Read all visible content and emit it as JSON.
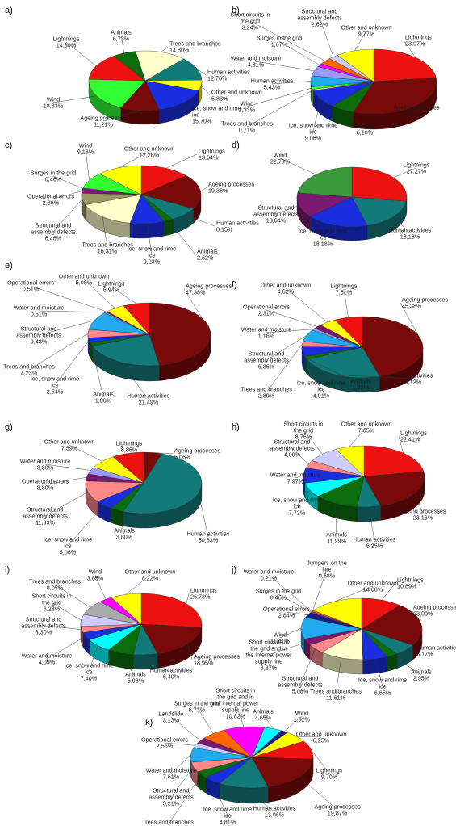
{
  "colors": {
    "red": "#ee1111",
    "maroon": "#7a0a0a",
    "teal": "#137a7a",
    "green": "#0b6d0b",
    "blue": "#1a2ee0",
    "yellow": "#ffff00",
    "lime": "#33ff33",
    "cream": "#ffffcc",
    "cyan": "#00ffff",
    "magenta": "#ff00ff",
    "orange": "#ff6600",
    "purple": "#7a1a6e",
    "salmon": "#ff8888",
    "periwinkle": "#9999ff",
    "lavender": "#ccccff",
    "sky": "#22aaee",
    "gray": "#aaaaaa",
    "olive": "#999966",
    "darkgreen": "#3a9a3a",
    "navy": "#1a2080",
    "lightgray": "#dddddd",
    "pink": "#ffccdd"
  },
  "chart_data": [
    {
      "id": "a",
      "panel_label": "a)",
      "type": "pie",
      "slices": [
        {
          "label": "Trees and branches",
          "value": 14.8,
          "color": "cream"
        },
        {
          "label": "Human activities",
          "value": 12.76,
          "color": "teal"
        },
        {
          "label": "Other and unknown",
          "value": 5.83,
          "color": "yellow"
        },
        {
          "label": "Ice, snow and rime ice",
          "value": 15.7,
          "color": "blue"
        },
        {
          "label": "Ageing processes",
          "value": 11.21,
          "color": "maroon"
        },
        {
          "label": "Wind",
          "value": 18.83,
          "color": "lime"
        },
        {
          "label": "Lightnings",
          "value": 14.8,
          "color": "red"
        },
        {
          "label": "Animals",
          "value": 6.73,
          "color": "green"
        }
      ],
      "value_labels": [
        "14,80%",
        "12,76%",
        "5,83%",
        "15,70%",
        "11,21%",
        "18,83%",
        "14,80%",
        "6,73%"
      ]
    },
    {
      "id": "b",
      "panel_label": "b)",
      "type": "pie",
      "slices": [
        {
          "label": "Lightnings",
          "value": 23.07,
          "color": "red"
        },
        {
          "label": "Ageing processes",
          "value": 32.17,
          "color": "maroon"
        },
        {
          "label": "Animals",
          "value": 6.1,
          "color": "green"
        },
        {
          "label": "Ice, snow and rime ice",
          "value": 9.06,
          "color": "blue"
        },
        {
          "label": "Trees and branches",
          "value": 0.71,
          "color": "cream"
        },
        {
          "label": "Wind",
          "value": 1.33,
          "color": "lime"
        },
        {
          "label": "Human activities",
          "value": 5.43,
          "color": "sky"
        },
        {
          "label": "Water and moisture",
          "value": 4.81,
          "color": "periwinkle"
        },
        {
          "label": "Surges in the grid",
          "value": 1.67,
          "color": "magenta"
        },
        {
          "label": "Short circuits in the grid",
          "value": 3.24,
          "color": "orange"
        },
        {
          "label": "Structural and assembly defects",
          "value": 2.62,
          "color": "lavender"
        },
        {
          "label": "Other and unknown",
          "value": 9.77,
          "color": "yellow"
        }
      ],
      "value_labels": [
        "23,07%",
        "32,17%",
        "6,10%",
        "9,06%",
        "0,71%",
        "1,33%",
        "5,43%",
        "4,81%",
        "1,67%",
        "3,24%",
        "2,62%",
        "9,77%"
      ]
    },
    {
      "id": "c",
      "panel_label": "c)",
      "type": "pie",
      "slices": [
        {
          "label": "Lightnings",
          "value": 13.64,
          "color": "red"
        },
        {
          "label": "Ageing processes",
          "value": 19.38,
          "color": "maroon"
        },
        {
          "label": "Human activities",
          "value": 8.15,
          "color": "teal"
        },
        {
          "label": "Animals",
          "value": 2.62,
          "color": "green"
        },
        {
          "label": "Ice, snow and rime ice",
          "value": 9.23,
          "color": "blue"
        },
        {
          "label": "Trees and branches",
          "value": 16.31,
          "color": "cream"
        },
        {
          "label": "Structural and assembly defects",
          "value": 6.46,
          "color": "olive"
        },
        {
          "label": "Operational errors",
          "value": 2.36,
          "color": "purple"
        },
        {
          "label": "Surges in the grid",
          "value": 0.46,
          "color": "magenta"
        },
        {
          "label": "Wind",
          "value": 9.13,
          "color": "lime"
        },
        {
          "label": "Other and unknown",
          "value": 12.26,
          "color": "yellow"
        }
      ],
      "value_labels": [
        "13,64%",
        "19,38%",
        "8,15%",
        "2,62%",
        "9,23%",
        "16,31%",
        "6,46%",
        "2,36%",
        "0,46%",
        "9,13%",
        "12,26%"
      ]
    },
    {
      "id": "d",
      "panel_label": "d)",
      "type": "pie",
      "slices": [
        {
          "label": "Lightnings",
          "value": 27.27,
          "color": "red"
        },
        {
          "label": "Human activities",
          "value": 18.18,
          "color": "teal"
        },
        {
          "label": "Ice, snow and rime ice",
          "value": 18.18,
          "color": "blue"
        },
        {
          "label": "Structural and assembly defects",
          "value": 13.64,
          "color": "purple"
        },
        {
          "label": "Wind",
          "value": 22.73,
          "color": "darkgreen"
        }
      ],
      "value_labels": [
        "27,27%",
        "18,18%",
        "18,18%",
        "13,64%",
        "22,73%"
      ]
    },
    {
      "id": "e",
      "panel_label": "e)",
      "type": "pie",
      "slices": [
        {
          "label": "Ageing processes",
          "value": 47.38,
          "color": "maroon"
        },
        {
          "label": "Human activities",
          "value": 21.49,
          "color": "teal"
        },
        {
          "label": "Animals",
          "value": 1.86,
          "color": "green"
        },
        {
          "label": "Ice, snow and rime ice",
          "value": 2.54,
          "color": "blue"
        },
        {
          "label": "Trees and branches",
          "value": 4.23,
          "color": "salmon"
        },
        {
          "label": "Structural and assembly defects",
          "value": 9.48,
          "color": "sky"
        },
        {
          "label": "Water and moisture",
          "value": 0.51,
          "color": "periwinkle"
        },
        {
          "label": "Operational errors",
          "value": 0.51,
          "color": "purple"
        },
        {
          "label": "Other and unknown",
          "value": 5.08,
          "color": "yellow"
        },
        {
          "label": "Lightnings",
          "value": 6.94,
          "color": "red"
        }
      ],
      "value_labels": [
        "47,38%",
        "21,49%",
        "1,86%",
        "2,54%",
        "4,23%",
        "9,48%",
        "0,51%",
        "0,51%",
        "5,08%",
        "6,94%"
      ]
    },
    {
      "id": "f",
      "panel_label": "f)",
      "type": "pie",
      "slices": [
        {
          "label": "Ageing processes",
          "value": 45.38,
          "color": "maroon"
        },
        {
          "label": "Human activities",
          "value": 23.12,
          "color": "teal"
        },
        {
          "label": "Animals",
          "value": 1.73,
          "color": "green"
        },
        {
          "label": "Ice, snow and rime ice",
          "value": 4.91,
          "color": "blue"
        },
        {
          "label": "Trees and branches",
          "value": 2.89,
          "color": "salmon"
        },
        {
          "label": "Structural and assembly defects",
          "value": 6.36,
          "color": "sky"
        },
        {
          "label": "Water and moisture",
          "value": 1.16,
          "color": "periwinkle"
        },
        {
          "label": "Operational errors",
          "value": 2.31,
          "color": "purple"
        },
        {
          "label": "Other and unknown",
          "value": 4.62,
          "color": "yellow"
        },
        {
          "label": "Lightnings",
          "value": 7.51,
          "color": "red"
        }
      ],
      "value_labels": [
        "45,38%",
        "23,12%",
        "1,73%",
        "4,91%",
        "2,89%",
        "6,36%",
        "1,16%",
        "2,31%",
        "4,62%",
        "7,51%"
      ]
    },
    {
      "id": "g",
      "panel_label": "g)",
      "type": "pie",
      "slices": [
        {
          "label": "Ageing processes",
          "value": 5.06,
          "color": "maroon"
        },
        {
          "label": "Human activities",
          "value": 50.63,
          "color": "teal"
        },
        {
          "label": "Animals",
          "value": 3.8,
          "color": "green"
        },
        {
          "label": "Ice, snow and rime ice",
          "value": 5.06,
          "color": "blue"
        },
        {
          "label": "Structural and assembly defects",
          "value": 11.39,
          "color": "salmon"
        },
        {
          "label": "Operational errors",
          "value": 3.8,
          "color": "purple"
        },
        {
          "label": "Water and moisture",
          "value": 3.8,
          "color": "periwinkle"
        },
        {
          "label": "Other and unknown",
          "value": 7.59,
          "color": "yellow"
        },
        {
          "label": "Lightnings",
          "value": 8.86,
          "color": "red"
        }
      ],
      "value_labels": [
        "5,06%",
        "50,63%",
        "3,80%",
        "5,06%",
        "11,39%",
        "3,80%",
        "3,80%",
        "7,59%",
        "8,86%"
      ]
    },
    {
      "id": "h",
      "panel_label": "h)",
      "type": "pie",
      "slices": [
        {
          "label": "Lightnings",
          "value": 22.41,
          "color": "red"
        },
        {
          "label": "Ageing processes",
          "value": 23.16,
          "color": "maroon"
        },
        {
          "label": "Human activities",
          "value": 6.25,
          "color": "teal"
        },
        {
          "label": "Animals",
          "value": 11.99,
          "color": "green"
        },
        {
          "label": "Ice, snow and rime ice",
          "value": 7.72,
          "color": "cyan"
        },
        {
          "label": "Water and moisture",
          "value": 7.97,
          "color": "blue"
        },
        {
          "label": "Structural and assembly defects",
          "value": 4.09,
          "color": "salmon"
        },
        {
          "label": "Short circuits in the grid",
          "value": 8.76,
          "color": "lavender"
        },
        {
          "label": "Other and unknown",
          "value": 7.65,
          "color": "yellow"
        }
      ],
      "value_labels": [
        "22,41%",
        "23,16%",
        "6,25%",
        "11,99%",
        "7,72%",
        "7,97%",
        "4,09%",
        "8,76%",
        "7,65%"
      ]
    },
    {
      "id": "i",
      "panel_label": "i)",
      "type": "pie",
      "slices": [
        {
          "label": "Lightnings",
          "value": 26.73,
          "color": "red"
        },
        {
          "label": "Ageing processes",
          "value": 18.95,
          "color": "maroon"
        },
        {
          "label": "Human activities",
          "value": 6.4,
          "color": "teal"
        },
        {
          "label": "Animals",
          "value": 6.98,
          "color": "green"
        },
        {
          "label": "Ice, snow and rime ice",
          "value": 7.4,
          "color": "cyan"
        },
        {
          "label": "Water and moisture",
          "value": 4.09,
          "color": "blue"
        },
        {
          "label": "Structural and assembly defects",
          "value": 3.3,
          "color": "salmon"
        },
        {
          "label": "Short circuits in the grid",
          "value": 6.23,
          "color": "lavender"
        },
        {
          "label": "Trees and branches",
          "value": 8.05,
          "color": "gray"
        },
        {
          "label": "Wind",
          "value": 3.65,
          "color": "magenta"
        },
        {
          "label": "Other and unknown",
          "value": 8.22,
          "color": "yellow"
        }
      ],
      "value_labels": [
        "26,73%",
        "18,95%",
        "6,40%",
        "6,98%",
        "7,40%",
        "4,09%",
        "3,30%",
        "6,23%",
        "8,05%",
        "3,65%",
        "8,22%"
      ]
    },
    {
      "id": "j",
      "panel_label": "j)",
      "type": "pie",
      "slices": [
        {
          "label": "Lightnings",
          "value": 10.89,
          "color": "red"
        },
        {
          "label": "Ageing processes",
          "value": 23.0,
          "color": "maroon"
        },
        {
          "label": "Human activities",
          "value": 6.17,
          "color": "teal"
        },
        {
          "label": "Animals",
          "value": 2.95,
          "color": "green"
        },
        {
          "label": "Ice, snow and rime ice",
          "value": 6.65,
          "color": "blue"
        },
        {
          "label": "Trees and branches",
          "value": 11.61,
          "color": "cream"
        },
        {
          "label": "Structural and assembly defects",
          "value": 5.06,
          "color": "salmon"
        },
        {
          "label": "Short circuits in the grid and in the internal power supply line",
          "value": 3.37,
          "color": "purple"
        },
        {
          "label": "Wind",
          "value": 11.41,
          "color": "sky"
        },
        {
          "label": "Operational errors",
          "value": 2.84,
          "color": "navy"
        },
        {
          "label": "Surges in the grid",
          "value": 0.46,
          "color": "magenta"
        },
        {
          "label": "Water and moisture",
          "value": 0.21,
          "color": "periwinkle"
        },
        {
          "label": "Jumpers on the line",
          "value": 0.68,
          "color": "orange"
        },
        {
          "label": "Other and unknown",
          "value": 14.68,
          "color": "yellow"
        }
      ],
      "value_labels": [
        "10,89%",
        "23,00%",
        "6,17%",
        "2,95%",
        "6,65%",
        "11,61%",
        "5,06%",
        "3,37%",
        "11,41%",
        "2,84%",
        "0,46%",
        "0,21%",
        "0,68%",
        "14,68%"
      ]
    },
    {
      "id": "k",
      "panel_label": "k)",
      "type": "pie",
      "slices": [
        {
          "label": "Animals",
          "value": 4.65,
          "color": "cyan"
        },
        {
          "label": "Wind",
          "value": 1.92,
          "color": "navy"
        },
        {
          "label": "Other and unknown",
          "value": 6.25,
          "color": "yellow"
        },
        {
          "label": "Lightnings",
          "value": 9.7,
          "color": "red"
        },
        {
          "label": "Ageing processes",
          "value": 19.87,
          "color": "maroon"
        },
        {
          "label": "Human activities",
          "value": 13.06,
          "color": "teal"
        },
        {
          "label": "Ice, snow and rime ice",
          "value": 4.81,
          "color": "blue"
        },
        {
          "label": "Trees and branches",
          "value": 3.69,
          "color": "green"
        },
        {
          "label": "Structural and assembly defects",
          "value": 5.21,
          "color": "salmon"
        },
        {
          "label": "Water and moisture",
          "value": 7.61,
          "color": "sky"
        },
        {
          "label": "Operational errors",
          "value": 2.56,
          "color": "lavender"
        },
        {
          "label": "Landslide",
          "value": 3.13,
          "color": "purple"
        },
        {
          "label": "Surges in the grid",
          "value": 6.73,
          "color": "orange"
        },
        {
          "label": "Short circuits in the grid and in the internal power supply line",
          "value": 10.82,
          "color": "magenta"
        }
      ],
      "value_labels": [
        "4,65%",
        "1,92%",
        "6,25%",
        "9,70%",
        "19,87%",
        "13,06%",
        "4,81%",
        "3,69%",
        "5,21%",
        "7,61%",
        "2,56%",
        "3,13%",
        "6,73%",
        "10,82%"
      ]
    }
  ]
}
